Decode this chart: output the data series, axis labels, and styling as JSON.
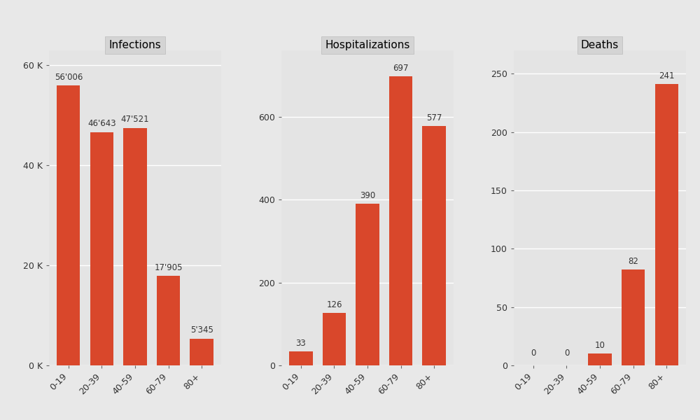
{
  "panels": [
    {
      "title": "Infections",
      "categories": [
        "0-19",
        "20-39",
        "40-59",
        "60-79",
        "80+"
      ],
      "values": [
        56006,
        46643,
        47521,
        17905,
        5345
      ],
      "labels": [
        "56'006",
        "46'643",
        "47'521",
        "17'905",
        "5'345"
      ],
      "yticks": [
        0,
        20000,
        40000,
        60000
      ],
      "yticklabels": [
        "0 K",
        "20 K",
        "40 K",
        "60 K"
      ],
      "ylim": [
        0,
        63000
      ]
    },
    {
      "title": "Hospitalizations",
      "categories": [
        "0-19",
        "20-39",
        "40-59",
        "60-79",
        "80+"
      ],
      "values": [
        33,
        126,
        390,
        697,
        577
      ],
      "labels": [
        "33",
        "126",
        "390",
        "697",
        "577"
      ],
      "yticks": [
        0,
        200,
        400,
        600
      ],
      "yticklabels": [
        "0",
        "200",
        "400",
        "600"
      ],
      "ylim": [
        0,
        760
      ]
    },
    {
      "title": "Deaths",
      "categories": [
        "0-19",
        "20-39",
        "40-59",
        "60-79",
        "80+"
      ],
      "values": [
        0,
        0,
        10,
        82,
        241
      ],
      "labels": [
        "0",
        "0",
        "10",
        "82",
        "241"
      ],
      "yticks": [
        0,
        50,
        100,
        150,
        200,
        250
      ],
      "yticklabels": [
        "0",
        "50",
        "100",
        "150",
        "200",
        "250"
      ],
      "ylim": [
        0,
        270
      ]
    }
  ],
  "bar_color": "#D9472B",
  "outer_bg_color": "#E8E8E8",
  "plot_bg_color": "#E4E4E4",
  "strip_bg_color": "#D4D4D4",
  "grid_color": "#FFFFFF",
  "title_fontsize": 11,
  "tick_fontsize": 9,
  "bar_label_fontsize": 8.5
}
